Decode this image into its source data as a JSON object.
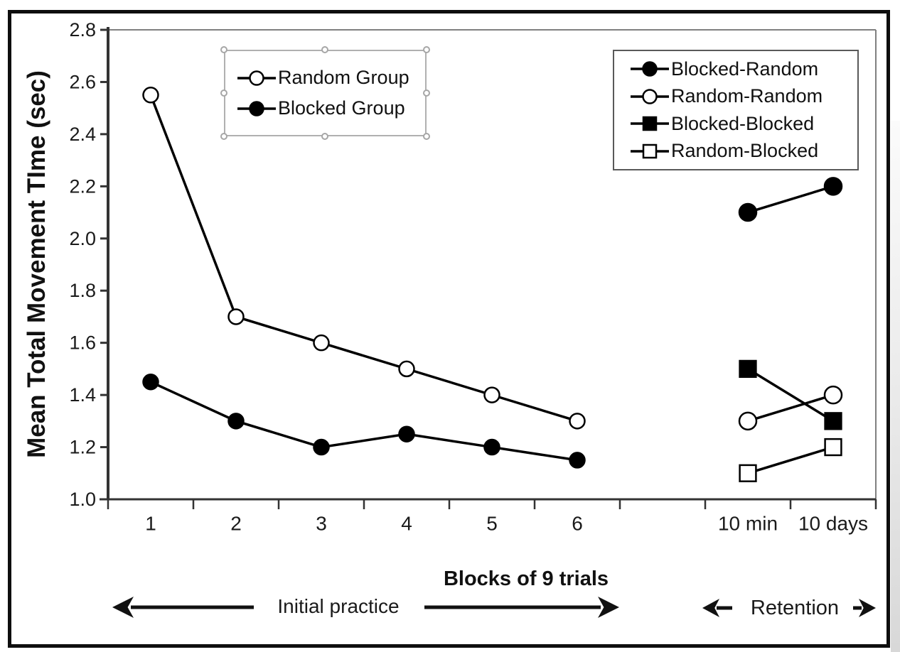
{
  "chart_data": {
    "type": "line",
    "title": "",
    "ylabel": "Mean Total Movement TIme (sec)",
    "xlabel": "Blocks of 9 trials",
    "ylim": [
      1.0,
      2.8
    ],
    "ytick_step": 0.2,
    "ytick_labels": [
      "2.8",
      "2.6",
      "2.4",
      "2.2",
      "2.0",
      "1.8",
      "1.6",
      "1.4",
      "1.2",
      "1.0"
    ],
    "grid": false,
    "sections": [
      {
        "name": "practice",
        "categories": [
          "1",
          "2",
          "3",
          "4",
          "5",
          "6"
        ],
        "series": [
          {
            "name": "Random Group",
            "marker": "circle-open",
            "values": [
              2.55,
              1.7,
              1.6,
              1.5,
              1.4,
              1.3
            ]
          },
          {
            "name": "Blocked Group",
            "marker": "circle-filled",
            "values": [
              1.45,
              1.3,
              1.2,
              1.25,
              1.2,
              1.15
            ]
          }
        ]
      },
      {
        "name": "retention",
        "categories": [
          "10 min",
          "10 days"
        ],
        "series": [
          {
            "name": "Blocked-Random",
            "marker": "circle-filled",
            "values": [
              2.1,
              2.2
            ]
          },
          {
            "name": "Random-Random",
            "marker": "circle-open",
            "values": [
              1.3,
              1.4
            ]
          },
          {
            "name": "Blocked-Blocked",
            "marker": "square-filled",
            "values": [
              1.5,
              1.3
            ]
          },
          {
            "name": "Random-Blocked",
            "marker": "square-open",
            "values": [
              1.1,
              1.2
            ]
          }
        ]
      }
    ],
    "legend_practice": {
      "selected": true,
      "items": [
        {
          "label": "Random Group",
          "marker": "circle-open"
        },
        {
          "label": "Blocked Group",
          "marker": "circle-filled"
        }
      ]
    },
    "legend_retention": {
      "items": [
        {
          "label": "Blocked-Random",
          "marker": "circle-filled"
        },
        {
          "label": "Random-Random",
          "marker": "circle-open"
        },
        {
          "label": "Blocked-Blocked",
          "marker": "square-filled"
        },
        {
          "label": "Random-Blocked",
          "marker": "square-open"
        }
      ]
    },
    "annotations": {
      "practice": "Initial practice",
      "retention": "Retention"
    },
    "colors": {
      "series": "#000000",
      "text": "#1a1a1a",
      "axis_major": "#333333",
      "axis_minor": "#808080",
      "legend_border": "#595959",
      "selection_handle": "#a6a6a6"
    }
  }
}
